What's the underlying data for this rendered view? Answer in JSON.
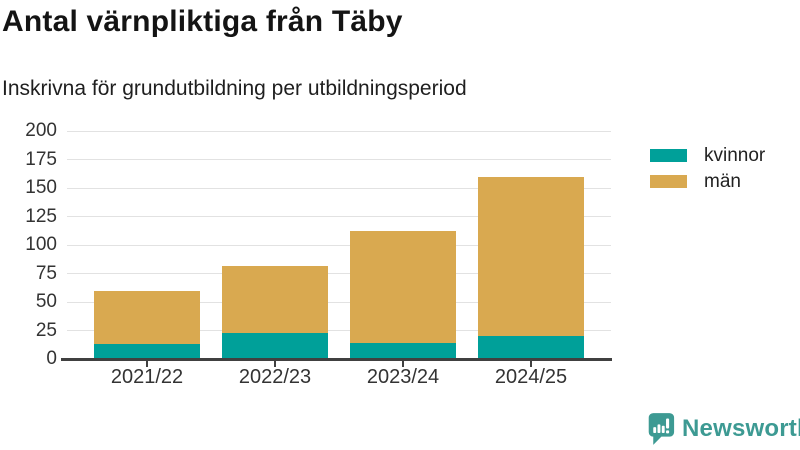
{
  "header": {
    "title": "Antal värnpliktiga från Täby",
    "subtitle": "Inskrivna för grundutbildning per utbildningsperiod"
  },
  "chart_data": {
    "type": "bar",
    "stacked": true,
    "title": "Antal värnpliktiga från Täby",
    "subtitle": "Inskrivna för grundutbildning per utbildningsperiod",
    "categories": [
      "2021/22",
      "2022/23",
      "2023/24",
      "2024/25"
    ],
    "series": [
      {
        "name": "kvinnor",
        "color": "#00a099",
        "values": [
          13,
          23,
          14,
          20
        ]
      },
      {
        "name": "män",
        "color": "#d9a950",
        "values": [
          47,
          59,
          98,
          140
        ]
      }
    ],
    "xlabel": "",
    "ylabel": "",
    "ylim": [
      0,
      200
    ],
    "yticks": [
      0,
      25,
      50,
      75,
      100,
      125,
      150,
      175,
      200
    ],
    "grid": true,
    "legend_position": "right"
  },
  "branding": {
    "logo_text": "Newsworthy",
    "logo_icon": "bar-chart-speech-bubble-icon",
    "color": "#3d9a93"
  },
  "colors": {
    "kvinnor": "#00a099",
    "man": "#d9a950",
    "axis": "#404040",
    "grid": "#e2e2e2",
    "tick_text": "#333333"
  }
}
